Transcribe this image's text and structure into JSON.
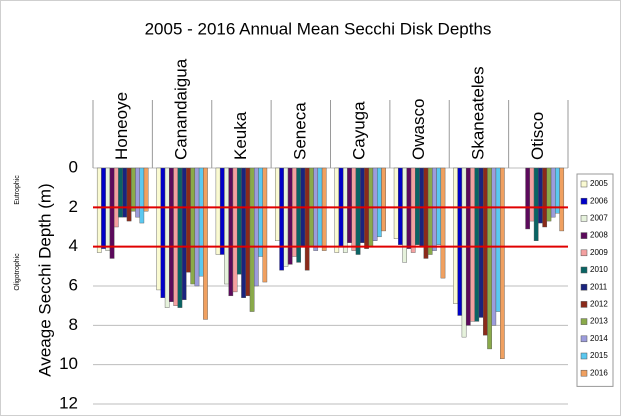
{
  "chart_data": {
    "type": "bar",
    "title": "2005 - 2016   Annual Mean Secchi Disk Depths",
    "y_label": "Aveage Secchi Depth (m)",
    "categories": [
      "Honeoye",
      "Canandaigua",
      "Keuka",
      "Seneca",
      "Cayuga",
      "Owasco",
      "Skaneateles",
      "Otisco"
    ],
    "series": [
      {
        "name": "2005",
        "color": "#fafad2",
        "values": [
          4.3,
          6.2,
          4.4,
          3.7,
          4.3,
          3.6,
          6.9,
          null
        ]
      },
      {
        "name": "2006",
        "color": "#0000c8",
        "values": [
          4.1,
          6.6,
          4.4,
          5.2,
          4.0,
          3.9,
          7.5,
          null
        ]
      },
      {
        "name": "2007",
        "color": "#e6f2dc",
        "values": [
          4.2,
          7.1,
          5.9,
          5.0,
          4.3,
          4.8,
          8.6,
          null
        ]
      },
      {
        "name": "2008",
        "color": "#5c0a5c",
        "values": [
          4.6,
          6.8,
          6.5,
          4.9,
          3.8,
          4.1,
          8.0,
          3.1
        ]
      },
      {
        "name": "2009",
        "color": "#f4a0a0",
        "values": [
          3.0,
          7.0,
          6.3,
          4.5,
          4.2,
          4.3,
          7.8,
          2.7
        ]
      },
      {
        "name": "2010",
        "color": "#0a6464",
        "values": [
          2.5,
          7.1,
          5.4,
          4.8,
          4.4,
          3.9,
          7.8,
          3.7
        ]
      },
      {
        "name": "2011",
        "color": "#1a237e",
        "values": [
          2.5,
          6.7,
          6.6,
          4.0,
          3.8,
          4.0,
          7.6,
          2.8
        ]
      },
      {
        "name": "2012",
        "color": "#8b2a1a",
        "values": [
          2.7,
          5.3,
          6.5,
          5.2,
          4.1,
          4.6,
          8.5,
          3.0
        ]
      },
      {
        "name": "2013",
        "color": "#8aaa4a",
        "values": [
          2.2,
          5.9,
          7.3,
          4.0,
          4.0,
          4.4,
          9.2,
          2.7
        ]
      },
      {
        "name": "2014",
        "color": "#9c9cdc",
        "values": [
          2.5,
          6.0,
          6.0,
          4.2,
          3.7,
          4.2,
          8.0,
          2.5
        ]
      },
      {
        "name": "2015",
        "color": "#5ac8f0",
        "values": [
          2.8,
          5.5,
          4.5,
          4.0,
          3.5,
          3.9,
          7.3,
          2.3
        ]
      },
      {
        "name": "2016",
        "color": "#f0a060",
        "values": [
          2.2,
          7.7,
          5.8,
          4.2,
          3.2,
          5.6,
          9.7,
          3.2
        ]
      }
    ],
    "ylim": [
      0,
      12
    ],
    "yticks": [
      0,
      2,
      4,
      6,
      8,
      10,
      12
    ],
    "y_inverted": true,
    "grid": true,
    "reference_lines": [
      {
        "value": 2,
        "color": "#e00000"
      },
      {
        "value": 4,
        "color": "#e00000"
      }
    ],
    "annotations": [
      "Eutrophic",
      "Oligotrophic"
    ],
    "legend": "right"
  }
}
